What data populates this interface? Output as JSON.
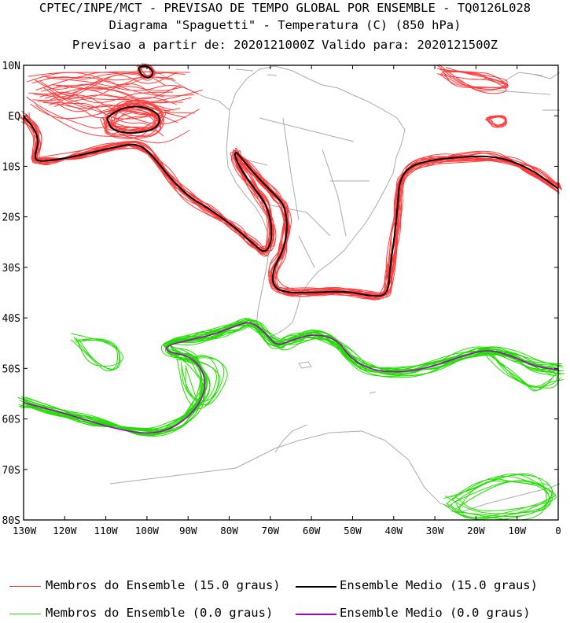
{
  "header": {
    "line1": "CPTEC/INPE/MCT - PREVISAO DE TEMPO GLOBAL POR ENSEMBLE - TQ0126L028",
    "line2": "Diagrama \"Spaguetti\" - Temperatura (C) (850 hPa)",
    "line3": "Previsao a partir de: 2020121000Z  Valido para: 2020121500Z"
  },
  "axes": {
    "lat_labels": [
      "10N",
      "EQ",
      "10S",
      "20S",
      "30S",
      "40S",
      "50S",
      "60S",
      "70S",
      "80S"
    ],
    "lon_labels": [
      "130W",
      "120W",
      "110W",
      "100W",
      "90W",
      "80W",
      "70W",
      "60W",
      "50W",
      "40W",
      "30W",
      "20W",
      "10W",
      "0"
    ]
  },
  "legend": {
    "members_15": "Membros do Ensemble (15.0 graus)",
    "mean_15": "Ensemble Medio (15.0 graus)",
    "members_0": "Membros do Ensemble (0.0 graus)",
    "mean_0": "Ensemble Medio (0.0 graus)"
  },
  "colors": {
    "members_15": "#ff3b3b",
    "mean_15": "#000000",
    "members_0": "#22dd00",
    "mean_0": "#aa00cc",
    "land": "#aaaaaa"
  }
}
